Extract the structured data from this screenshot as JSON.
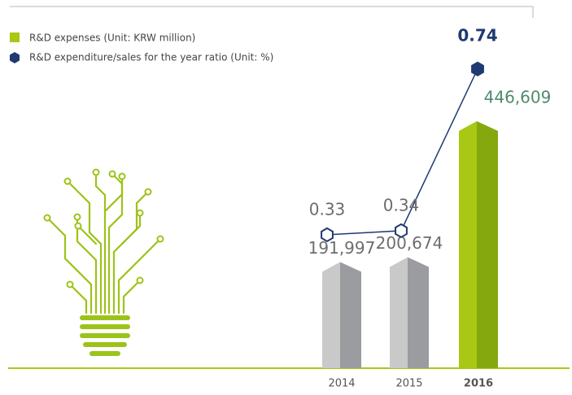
{
  "chart_data": {
    "type": "bar",
    "categories": [
      "2014",
      "2015",
      "2016"
    ],
    "series": [
      {
        "name": "R&D expenses (Unit: KRW million)",
        "color": "#a8c814",
        "colors": [
          "#c9c9c9",
          "#c9c9c9",
          "#a8c814"
        ],
        "values": [
          191997,
          200674,
          446609
        ],
        "value_labels": [
          "191,997",
          "200,674",
          "446,609"
        ],
        "label_colors": [
          "#6d6d6d",
          "#6d6d6d",
          "#4f8a6d"
        ]
      },
      {
        "name": "R&D expenditure/sales for the year ratio (Unit: %)",
        "type": "line",
        "axis": "y2",
        "color": "#1f3a70",
        "values": [
          0.33,
          0.34,
          0.74
        ],
        "label_colors": [
          "#6d6d6d",
          "#6d6d6d",
          "#1f3a70"
        ]
      }
    ],
    "ylim": [
      0,
      460000
    ],
    "y2lim": [
      0,
      0.8
    ]
  }
}
